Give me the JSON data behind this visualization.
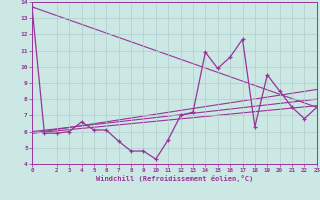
{
  "xlabel": "Windchill (Refroidissement éolien,°C)",
  "bg_color": "#cce8e4",
  "line_color": "#993399",
  "grid_color": "#b0cccc",
  "xlim": [
    0,
    23
  ],
  "ylim": [
    4,
    14
  ],
  "xticks": [
    0,
    2,
    3,
    4,
    5,
    6,
    7,
    8,
    9,
    10,
    11,
    12,
    13,
    14,
    15,
    16,
    17,
    18,
    19,
    20,
    21,
    22,
    23
  ],
  "yticks": [
    4,
    5,
    6,
    7,
    8,
    9,
    10,
    11,
    12,
    13,
    14
  ],
  "main_xy": [
    [
      0,
      13.7
    ],
    [
      1,
      5.9
    ],
    [
      2,
      5.9
    ],
    [
      3,
      6.0
    ],
    [
      4,
      6.6
    ],
    [
      5,
      6.1
    ],
    [
      6,
      6.1
    ],
    [
      7,
      5.4
    ],
    [
      8,
      4.8
    ],
    [
      9,
      4.8
    ],
    [
      10,
      4.3
    ],
    [
      11,
      5.5
    ],
    [
      12,
      7.0
    ],
    [
      13,
      7.2
    ],
    [
      14,
      10.9
    ],
    [
      15,
      9.9
    ],
    [
      16,
      10.6
    ],
    [
      17,
      11.7
    ],
    [
      18,
      6.3
    ],
    [
      19,
      9.5
    ],
    [
      20,
      8.5
    ],
    [
      21,
      7.5
    ],
    [
      22,
      6.8
    ],
    [
      23,
      7.5
    ]
  ],
  "trend_lines": [
    {
      "x": [
        0,
        23
      ],
      "y": [
        13.7,
        7.5
      ]
    },
    {
      "x": [
        0,
        23
      ],
      "y": [
        5.9,
        7.6
      ]
    },
    {
      "x": [
        0,
        23
      ],
      "y": [
        5.9,
        8.6
      ]
    },
    {
      "x": [
        0,
        23
      ],
      "y": [
        6.0,
        8.0
      ]
    }
  ]
}
